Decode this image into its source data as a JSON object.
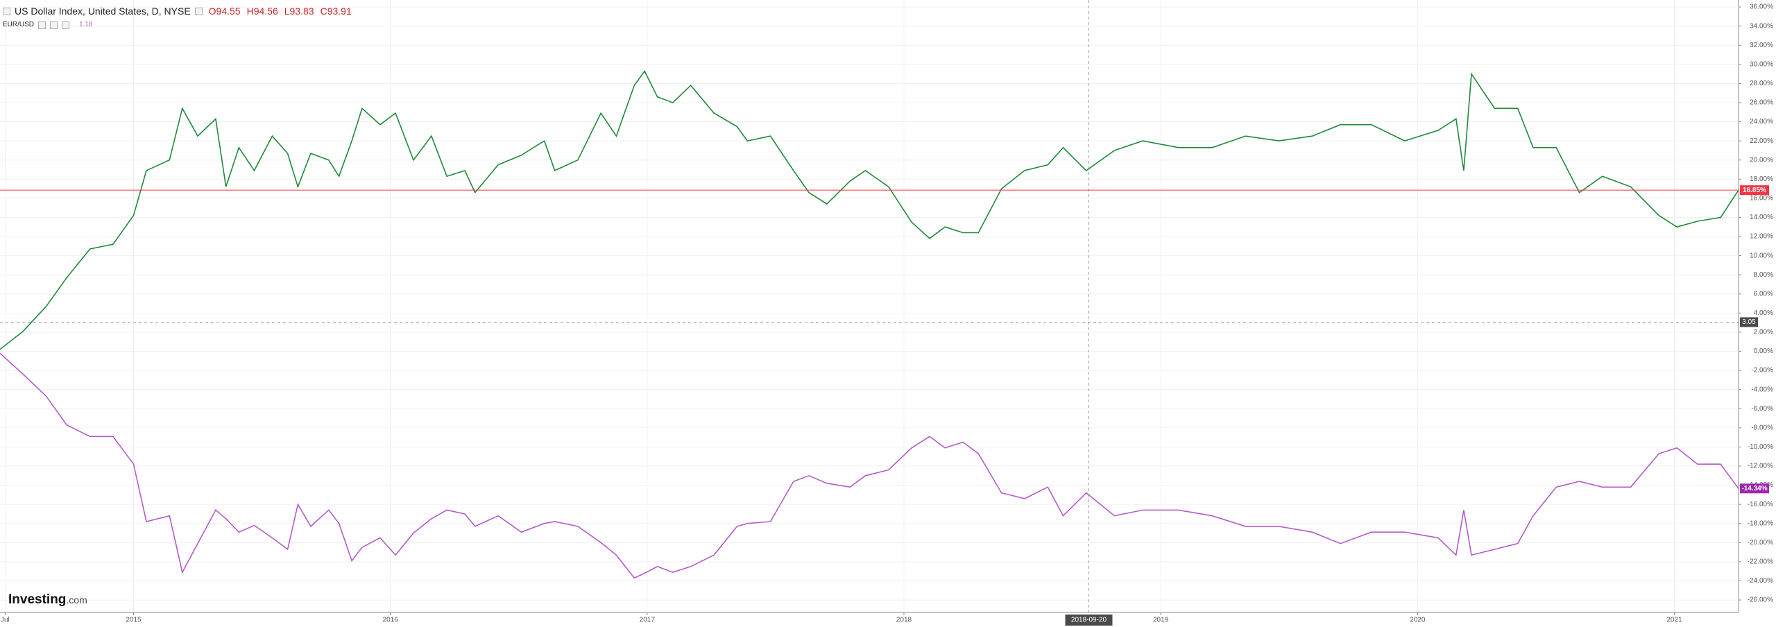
{
  "chart_data": {
    "type": "line",
    "header": {
      "ohlc": [
        "O94.55",
        "H94.56",
        "L93.83",
        "C93.91"
      ],
      "last_value": 1.18
    },
    "logo": [
      "Investing",
      ".com"
    ],
    "x": [
      2014.48,
      2014.57,
      2014.66,
      2014.74,
      2014.83,
      2014.92,
      2015.0,
      2015.05,
      2015.14,
      2015.19,
      2015.25,
      2015.32,
      2015.36,
      2015.41,
      2015.47,
      2015.54,
      2015.6,
      2015.64,
      2015.69,
      2015.76,
      2015.8,
      2015.85,
      2015.89,
      2015.96,
      2016.02,
      2016.09,
      2016.16,
      2016.22,
      2016.29,
      2016.33,
      2016.42,
      2016.51,
      2016.6,
      2016.64,
      2016.73,
      2016.82,
      2016.88,
      2016.95,
      2016.99,
      2017.04,
      2017.1,
      2017.17,
      2017.26,
      2017.35,
      2017.39,
      2017.48,
      2017.57,
      2017.63,
      2017.7,
      2017.79,
      2017.85,
      2017.94,
      2018.03,
      2018.1,
      2018.16,
      2018.23,
      2018.29,
      2018.38,
      2018.47,
      2018.56,
      2018.62,
      2018.71,
      2018.82,
      2018.93,
      2019.07,
      2019.2,
      2019.33,
      2019.46,
      2019.59,
      2019.7,
      2019.82,
      2019.95,
      2020.08,
      2020.15,
      2020.18,
      2020.21,
      2020.3,
      2020.39,
      2020.45,
      2020.54,
      2020.63,
      2020.72,
      2020.83,
      2020.94,
      2021.01,
      2021.09,
      2021.18,
      2021.25
    ],
    "series": [
      {
        "name": "US Dollar Index, United States, D, NYSE",
        "color": "#1f8a3a",
        "badge_color": "#f23645",
        "values": [
          0.2,
          2.1,
          4.7,
          7.7,
          10.7,
          11.2,
          14.2,
          18.9,
          20,
          25.4,
          22.5,
          24.3,
          17.2,
          21.3,
          18.9,
          22.5,
          20.7,
          17.2,
          20.7,
          20,
          18.3,
          22,
          25.4,
          23.7,
          24.9,
          20,
          22.5,
          18.3,
          18.9,
          16.6,
          19.5,
          20.5,
          22,
          18.9,
          20,
          24.9,
          22.5,
          27.8,
          29.3,
          26.6,
          26,
          27.8,
          24.9,
          23.5,
          22,
          22.5,
          18.9,
          16.6,
          15.4,
          17.8,
          18.9,
          17.2,
          13.5,
          11.8,
          13,
          12.4,
          12.4,
          17,
          18.9,
          19.5,
          21.3,
          18.9,
          21,
          22,
          21.3,
          21.3,
          22.5,
          22,
          22.5,
          23.7,
          23.7,
          22,
          23.1,
          24.3,
          18.9,
          29,
          25.4,
          25.4,
          21.3,
          21.3,
          16.6,
          18.3,
          17.2,
          14.2,
          13,
          13.6,
          14,
          16.85
        ],
        "value_labels": [
          null,
          null,
          null,
          null,
          null,
          null,
          null,
          null,
          null,
          null,
          null,
          null,
          null,
          null,
          null,
          null,
          null,
          null,
          null,
          null,
          null,
          null,
          null,
          null,
          null,
          null,
          null,
          null,
          null,
          null,
          null,
          null,
          null,
          null,
          null,
          null,
          null,
          null,
          null,
          null,
          null,
          null,
          null,
          null,
          null,
          null,
          null,
          null,
          null,
          null,
          null,
          null,
          null,
          null,
          null,
          null,
          null,
          null,
          null,
          null,
          null,
          null,
          null,
          null,
          null,
          null,
          null,
          null,
          null,
          null,
          null,
          null,
          null,
          null,
          null,
          null,
          null,
          null,
          null,
          null,
          null,
          null,
          null,
          null,
          null,
          null,
          null,
          "16.85%"
        ]
      },
      {
        "name": "EUR/USD",
        "color": "#b25cc8",
        "badge_color": "#9c27b0",
        "values": [
          -0.2,
          -2.4,
          -4.7,
          -7.7,
          -8.9,
          -8.9,
          -11.8,
          -17.8,
          -17.2,
          -23.1,
          -20.1,
          -16.6,
          -17.5,
          -18.9,
          -18.2,
          -19.5,
          -20.7,
          -16,
          -18.3,
          -16.6,
          -18,
          -21.9,
          -20.5,
          -19.5,
          -21.3,
          -19,
          -17.5,
          -16.6,
          -17,
          -18.3,
          -17.2,
          -18.9,
          -18,
          -17.8,
          -18.3,
          -20,
          -21.3,
          -23.7,
          -23.2,
          -22.5,
          -23.1,
          -22.5,
          -21.3,
          -18.3,
          -18,
          -17.8,
          -13.6,
          -13,
          -13.8,
          -14.2,
          -13,
          -12.4,
          -10.1,
          -8.9,
          -10.1,
          -9.5,
          -10.7,
          -14.8,
          -15.4,
          -14.2,
          -17.2,
          -14.8,
          -17.2,
          -16.6,
          -16.6,
          -17.2,
          -18.3,
          -18.3,
          -18.9,
          -20.1,
          -18.9,
          -18.9,
          -19.5,
          -21.3,
          -16.6,
          -21.3,
          -20.7,
          -20.1,
          -17.2,
          -14.2,
          -13.6,
          -14.2,
          -14.2,
          -10.7,
          -10.1,
          -11.8,
          -11.8,
          -14.34
        ],
        "value_labels": [
          null,
          null,
          null,
          null,
          null,
          null,
          null,
          null,
          null,
          null,
          null,
          null,
          null,
          null,
          null,
          null,
          null,
          null,
          null,
          null,
          null,
          null,
          null,
          null,
          null,
          null,
          null,
          null,
          null,
          null,
          null,
          null,
          null,
          null,
          null,
          null,
          null,
          null,
          null,
          null,
          null,
          null,
          null,
          null,
          null,
          null,
          null,
          null,
          null,
          null,
          null,
          null,
          null,
          null,
          null,
          null,
          null,
          null,
          null,
          null,
          null,
          null,
          null,
          null,
          null,
          null,
          null,
          null,
          null,
          null,
          null,
          null,
          null,
          null,
          null,
          null,
          null,
          null,
          null,
          null,
          null,
          null,
          null,
          null,
          null,
          null,
          null,
          "-14.34%"
        ]
      }
    ],
    "xlim": [
      2014.48,
      2021.25
    ],
    "xticks": [
      {
        "value": 2014.5,
        "label": "Jul"
      },
      2015,
      2016,
      2017,
      2018,
      2019,
      2020,
      2021
    ],
    "ylim": [
      -27.3,
      36.73
    ],
    "yticks": [
      {
        "value": 36,
        "label": "36.00%"
      },
      {
        "value": 34,
        "label": "34.00%"
      },
      {
        "value": 32,
        "label": "32.00%"
      },
      {
        "value": 30,
        "label": "30.00%"
      },
      {
        "value": 28,
        "label": "28.00%"
      },
      {
        "value": 26,
        "label": "26.00%"
      },
      {
        "value": 24,
        "label": "24.00%"
      },
      {
        "value": 22,
        "label": "22.00%"
      },
      {
        "value": 20,
        "label": "20.00%"
      },
      {
        "value": 18,
        "label": "18.00%"
      },
      {
        "value": 16,
        "label": "16.00%"
      },
      {
        "value": 14,
        "label": "14.00%"
      },
      {
        "value": 12,
        "label": "12.00%"
      },
      {
        "value": 10,
        "label": "10.00%"
      },
      {
        "value": 8,
        "label": "8.00%"
      },
      {
        "value": 6,
        "label": "6.00%"
      },
      {
        "value": 4,
        "label": "4.00%"
      },
      {
        "value": 2,
        "label": "2.00%"
      },
      {
        "value": 0,
        "label": "0.00%"
      },
      {
        "value": -2,
        "label": "-2.00%"
      },
      {
        "value": -4,
        "label": "-4.00%"
      },
      {
        "value": -6,
        "label": "-6.00%"
      },
      {
        "value": -8,
        "label": "-8.00%"
      },
      {
        "value": -10,
        "label": "-10.00%"
      },
      {
        "value": -12,
        "label": "-12.00%"
      },
      {
        "value": -14,
        "label": "-14.00%"
      },
      {
        "value": -16,
        "label": "-16.00%"
      },
      {
        "value": -18,
        "label": "-18.00%"
      },
      {
        "value": -20,
        "label": "-20.00%"
      },
      {
        "value": -22,
        "label": "-22.00%"
      },
      {
        "value": -24,
        "label": "-24.00%"
      },
      {
        "value": -26,
        "label": "-26.00%"
      }
    ],
    "grid": true,
    "crosshair": {
      "x": {
        "value": 2018.72,
        "label": "2018-09-20"
      },
      "y": 3.05
    }
  }
}
